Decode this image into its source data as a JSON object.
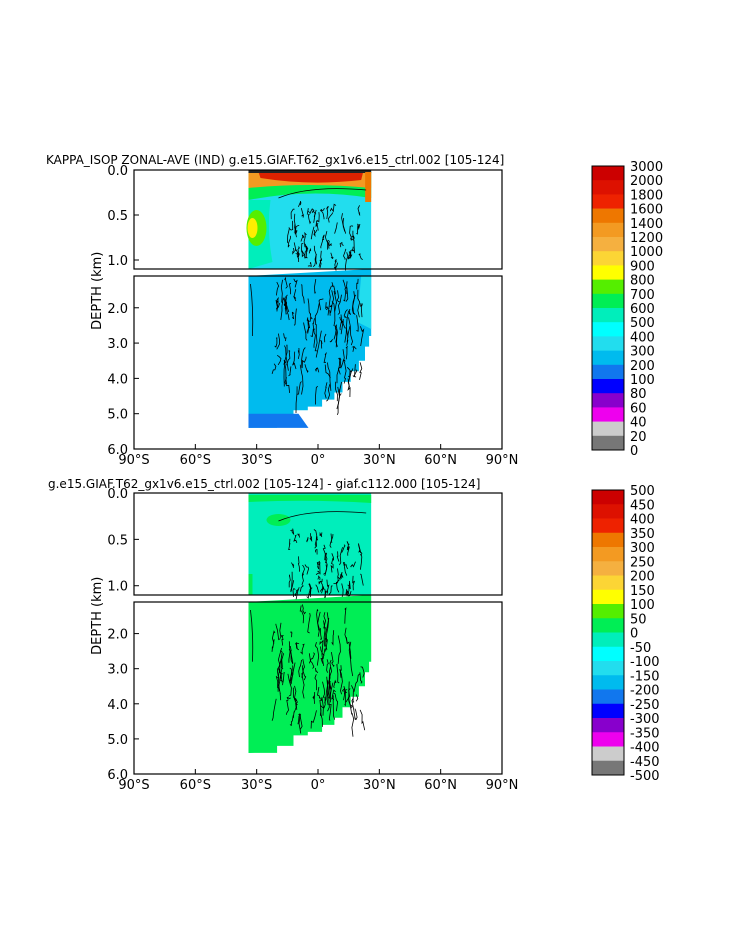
{
  "chart_data": [
    {
      "type": "heatmap",
      "title": "KAPPA_ISOP ZONAL-AVE (IND) g.e15.GIAF.T62_gx1v6.e15_ctrl.002 [105-124]",
      "ylabel": "DEPTH (km)",
      "x_ticks": [
        "90°S",
        "60°S",
        "30°S",
        "0°",
        "30°N",
        "60°N",
        "90°N"
      ],
      "y_ticks_upper": [
        "0.0",
        "0.5",
        "1.0"
      ],
      "y_ticks_lower": [
        "2.0",
        "3.0",
        "4.0",
        "5.0",
        "6.0"
      ],
      "xlim": [
        -90,
        90
      ],
      "ylim_upper_km": [
        0,
        1.1
      ],
      "ylim_lower_km": [
        1.1,
        6.0
      ],
      "data_extent_lat": [
        -34,
        26
      ],
      "colorbar": {
        "labels": [
          "3000",
          "2000",
          "1800",
          "1600",
          "1400",
          "1200",
          "1000",
          "900",
          "800",
          "700",
          "600",
          "500",
          "400",
          "300",
          "200",
          "100",
          "80",
          "60",
          "40",
          "20",
          "0"
        ],
        "colors": [
          "#cc0000",
          "#dd1100",
          "#ee2200",
          "#ee7700",
          "#f39a22",
          "#f5b040",
          "#fcd535",
          "#ffff00",
          "#55ee00",
          "#00ee55",
          "#00eebb",
          "#00ffff",
          "#22ddee",
          "#00bbee",
          "#1177ee",
          "#0000ff",
          "#8800cc",
          "#ee00ee",
          "#cccccc",
          "#777777"
        ]
      },
      "fields": {
        "upper_bg": "#22ddee",
        "lower_bg": "#00bbee",
        "surface_band": "#dd2200",
        "blob_left": "#ffee00",
        "shelf_blue": "#1177ee"
      }
    },
    {
      "type": "heatmap",
      "title": "g.e15.GIAF.T62_gx1v6.e15_ctrl.002 [105-124] - giaf.c112.000 [105-124]",
      "ylabel": "DEPTH (km)",
      "x_ticks": [
        "90°S",
        "60°S",
        "30°S",
        "0°",
        "30°N",
        "60°N",
        "90°N"
      ],
      "y_ticks_upper": [
        "0.0",
        "0.5",
        "1.0"
      ],
      "y_ticks_lower": [
        "2.0",
        "3.0",
        "4.0",
        "5.0",
        "6.0"
      ],
      "xlim": [
        -90,
        90
      ],
      "ylim_upper_km": [
        0,
        1.1
      ],
      "ylim_lower_km": [
        1.1,
        6.0
      ],
      "data_extent_lat": [
        -34,
        26
      ],
      "colorbar": {
        "labels": [
          "500",
          "450",
          "400",
          "350",
          "300",
          "250",
          "200",
          "150",
          "100",
          "50",
          "0",
          "-50",
          "-100",
          "-150",
          "-200",
          "-250",
          "-300",
          "-350",
          "-400",
          "-450",
          "-500"
        ],
        "colors": [
          "#cc0000",
          "#dd1100",
          "#ee2200",
          "#ee7700",
          "#f39a22",
          "#f5b040",
          "#fcd535",
          "#ffff00",
          "#55ee00",
          "#00ee55",
          "#00eebb",
          "#00ffff",
          "#22ddee",
          "#00bbee",
          "#1177ee",
          "#0000ff",
          "#8800cc",
          "#ee00ee",
          "#cccccc",
          "#777777"
        ]
      },
      "fields": {
        "upper_bg": "#00eebb",
        "lower_bg": "#00ee55",
        "surface_band": "#00ee55",
        "blob_left": "#00ee55",
        "shelf_blue": "#00ee55"
      }
    }
  ]
}
